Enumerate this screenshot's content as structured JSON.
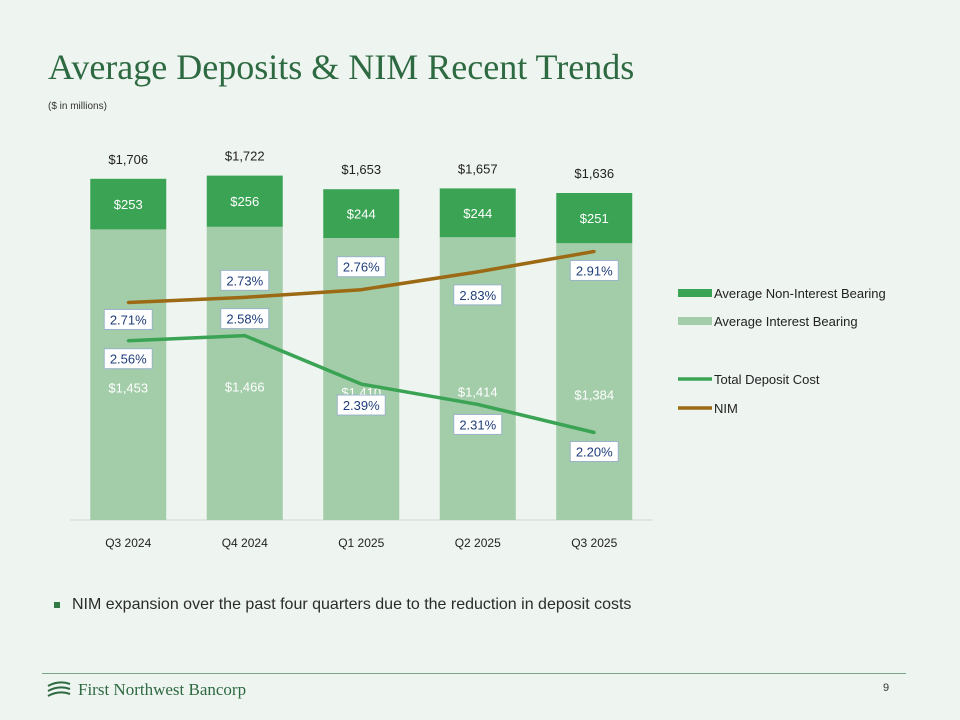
{
  "slide": {
    "title": "Average Deposits & NIM Recent Trends",
    "subtitle": "($ in millions)",
    "bullet": "NIM expansion over the past four quarters due to the reduction in deposit costs",
    "company": "First Northwest Bancorp",
    "page_number": "9"
  },
  "chart_data": {
    "type": "bar",
    "stacked": true,
    "categories": [
      "Q3 2024",
      "Q4 2024",
      "Q1 2025",
      "Q2 2025",
      "Q3 2025"
    ],
    "series": [
      {
        "name": "Average Interest Bearing",
        "kind": "bar",
        "color": "#a3cca9",
        "values": [
          1453,
          1466,
          1410,
          1414,
          1384
        ],
        "labels": [
          "$1,453",
          "$1,466",
          "$1,410",
          "$1,414",
          "$1,384"
        ]
      },
      {
        "name": "Average Non-Interest Bearing",
        "kind": "bar",
        "color": "#3aa354",
        "values": [
          253,
          256,
          244,
          244,
          251
        ],
        "labels": [
          "$253",
          "$256",
          "$244",
          "$244",
          "$251"
        ]
      },
      {
        "name": "Total Deposit Cost",
        "kind": "line",
        "color": "#3aa354",
        "values": [
          2.56,
          2.58,
          2.39,
          2.31,
          2.2
        ],
        "labels": [
          "2.56%",
          "2.58%",
          "2.39%",
          "2.31%",
          "2.20%"
        ]
      },
      {
        "name": "NIM",
        "kind": "line",
        "color": "#9c6914",
        "values": [
          2.71,
          2.73,
          2.76,
          2.83,
          2.91
        ],
        "labels": [
          "2.71%",
          "2.73%",
          "2.76%",
          "2.83%",
          "2.91%"
        ]
      }
    ],
    "totals": [
      "$1,706",
      "$1,722",
      "$1,653",
      "$1,657",
      "$1,636"
    ],
    "legend_position": "right",
    "grid": false
  }
}
